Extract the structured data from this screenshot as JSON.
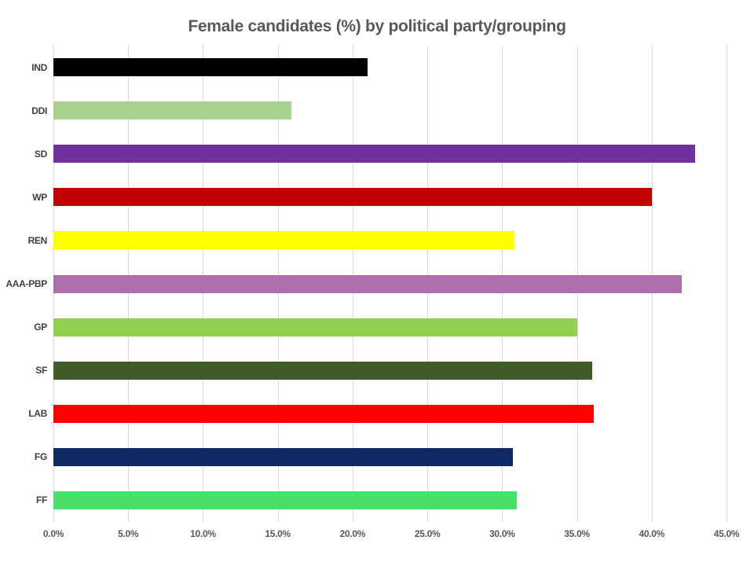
{
  "chart_data": {
    "type": "bar",
    "orientation": "horizontal",
    "title": "Female candidates (%) by political party/grouping",
    "categories": [
      "IND",
      "DDI",
      "SD",
      "WP",
      "REN",
      "AAA-PBP",
      "GP",
      "SF",
      "LAB",
      "FG",
      "FF"
    ],
    "values": [
      21.0,
      15.9,
      42.9,
      40.0,
      30.8,
      42.0,
      35.0,
      36.0,
      36.1,
      30.7,
      31.0
    ],
    "bar_colors": [
      "#000000",
      "#A9D18E",
      "#7030A0",
      "#C00000",
      "#FFFF00",
      "#AD70AC",
      "#92D050",
      "#3F5C28",
      "#FF0000",
      "#0E2963",
      "#49DF6B"
    ],
    "xlim": [
      0,
      45
    ],
    "x_tick_step": 5,
    "x_tick_labels": [
      "0.0%",
      "5.0%",
      "10.0%",
      "15.0%",
      "20.0%",
      "25.0%",
      "30.0%",
      "35.0%",
      "40.0%",
      "45.0%"
    ],
    "grid": true,
    "legend": false,
    "xlabel": "",
    "ylabel": ""
  },
  "styles": {
    "title_color": "#595959",
    "y_label_color": "#404040",
    "x_label_color": "#595959",
    "grid_color": "#D9D9D9",
    "background": "#FFFFFF"
  }
}
